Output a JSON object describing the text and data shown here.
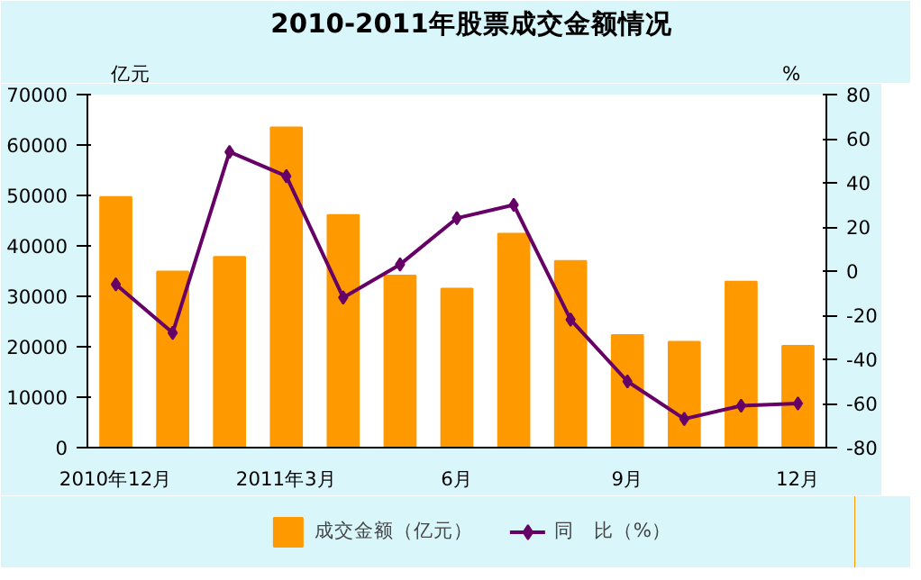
{
  "chart_data": {
    "type": "bar",
    "title": "2010-2011年股票成交金额情况",
    "ylabel": "亿元",
    "y2label": "%",
    "categories": [
      "2010年12月",
      null,
      null,
      "2011年3月",
      null,
      null,
      "6月",
      null,
      null,
      "9月",
      null,
      null,
      "12月"
    ],
    "series": [
      {
        "name": "成交金额（亿元）",
        "color": "#ff9900",
        "values": [
          49700,
          34900,
          37800,
          63500,
          46100,
          34100,
          31500,
          42400,
          37000,
          22300,
          21000,
          32900,
          20200
        ]
      },
      {
        "name": "同　比（%）",
        "type": "line",
        "axis": "y2",
        "color": "#660066",
        "marker": "diamond",
        "values": [
          -6,
          -28,
          54,
          43,
          -12,
          3,
          24,
          30,
          -22,
          -50,
          -67,
          -61,
          -60
        ]
      }
    ],
    "ylim": [
      0,
      70000
    ],
    "yticks": [
      0,
      10000,
      20000,
      30000,
      40000,
      50000,
      60000,
      70000
    ],
    "y2lim": [
      -80,
      80
    ],
    "y2ticks": [
      -80,
      -60,
      -40,
      -20,
      0,
      20,
      40,
      60,
      80
    ],
    "grid": false,
    "legend": "bottom"
  }
}
